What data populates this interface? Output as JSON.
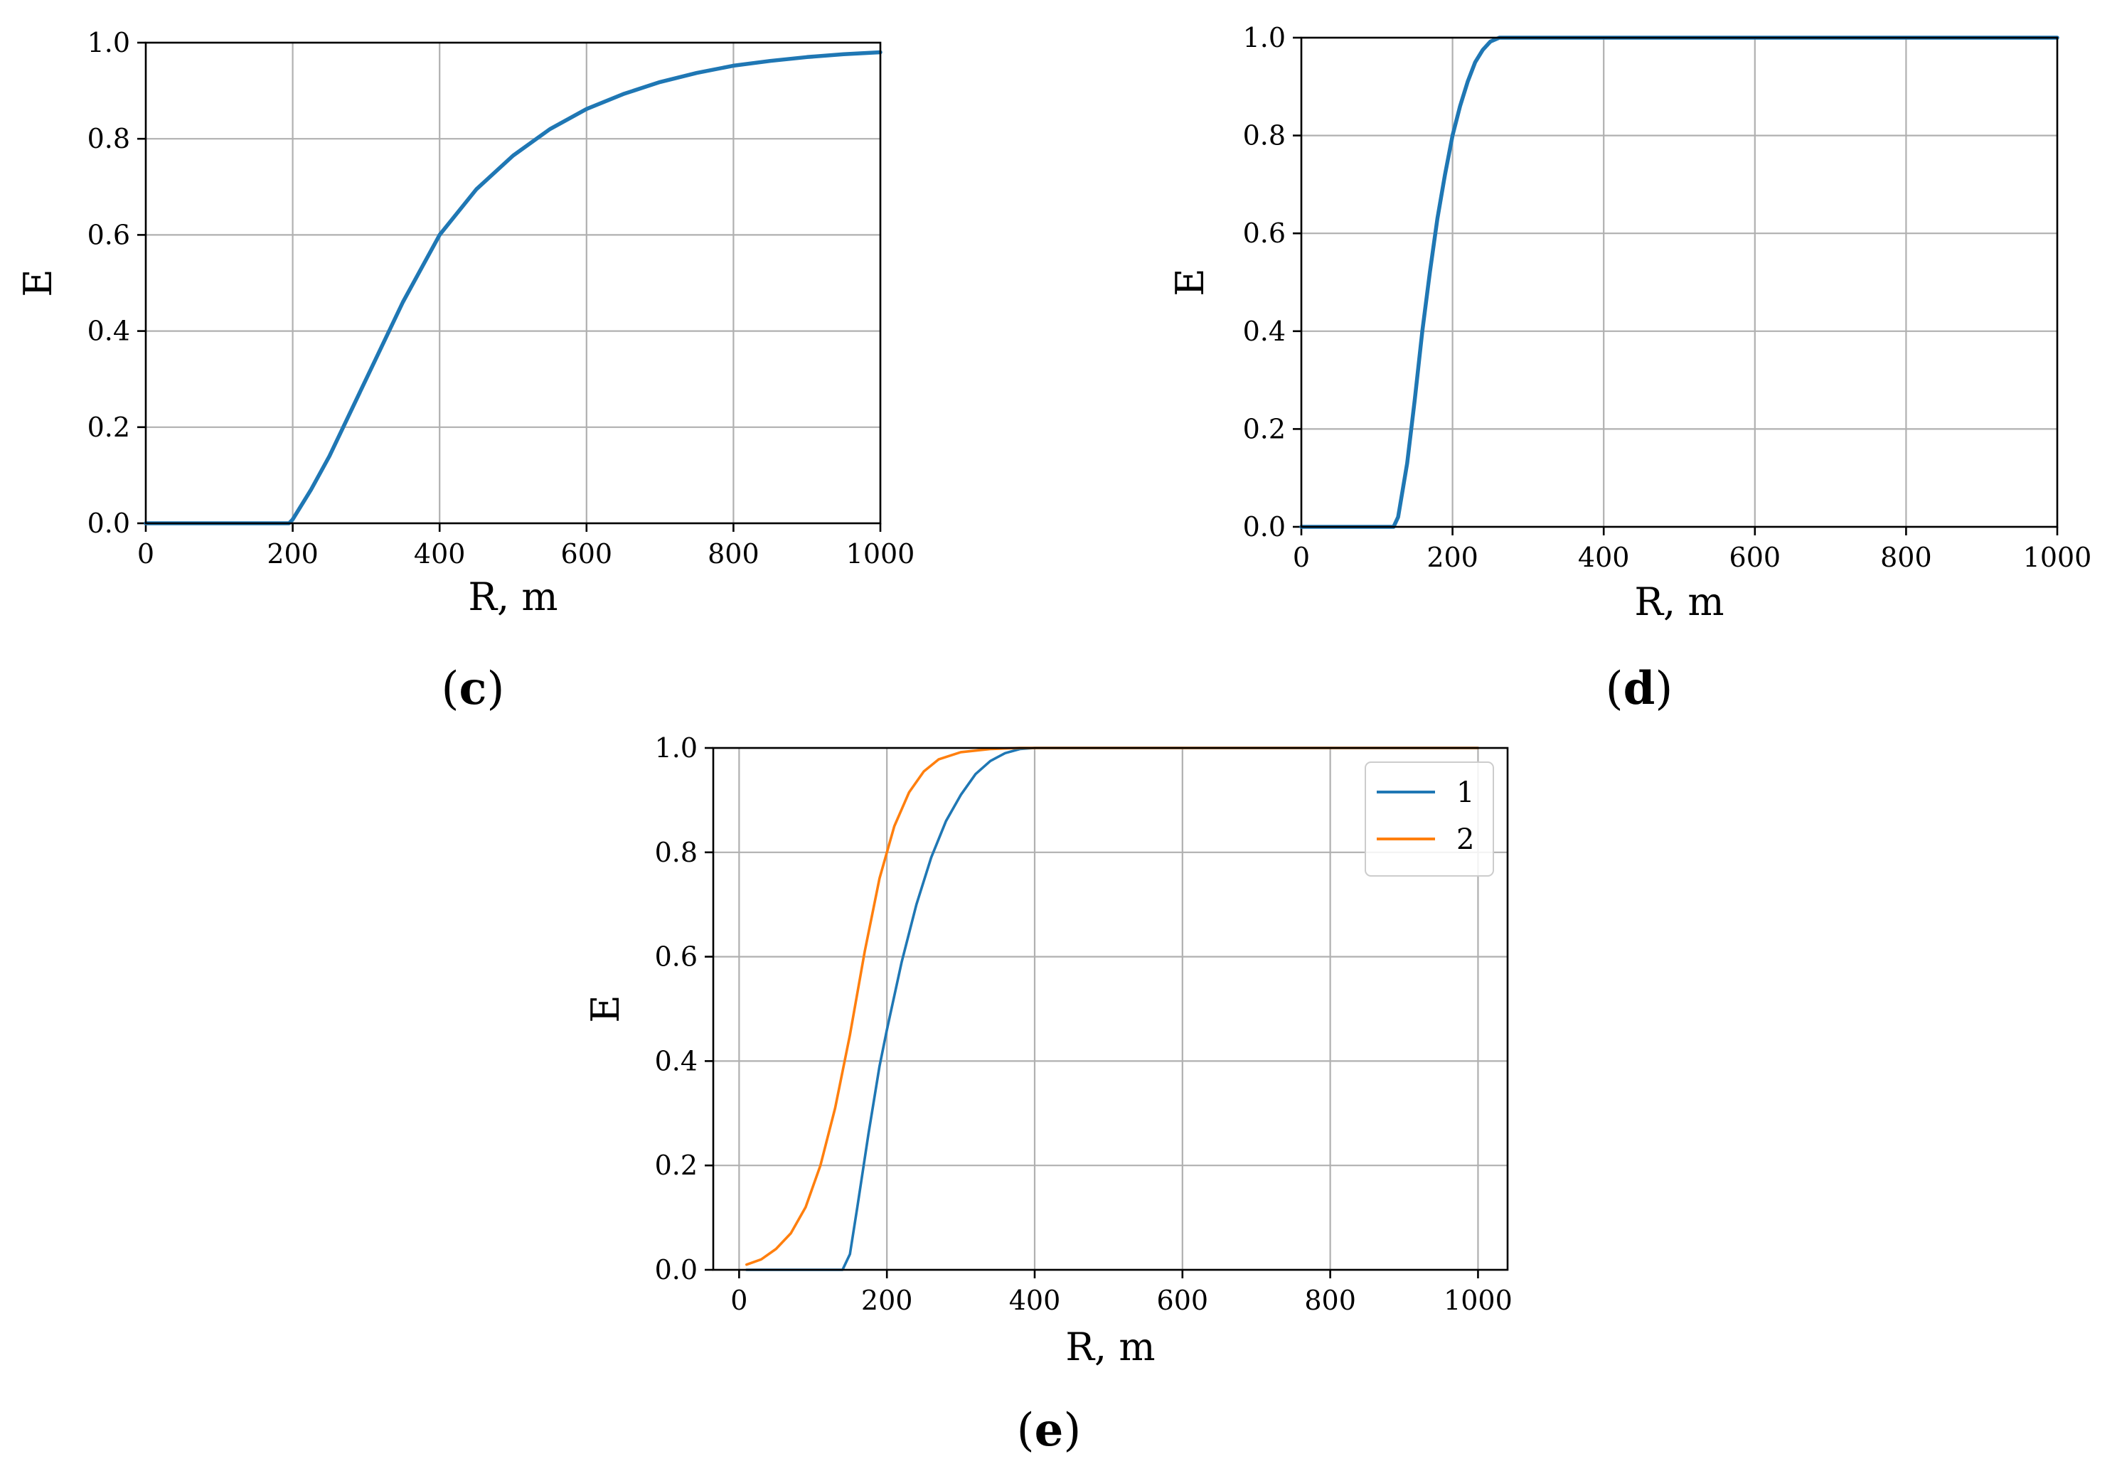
{
  "chart_data": [
    {
      "panel": "c",
      "type": "line",
      "xlabel": "R, m",
      "ylabel": "E",
      "xlim": [
        0,
        1000
      ],
      "ylim": [
        0,
        1
      ],
      "xticks": [
        "0",
        "200",
        "400",
        "600",
        "800",
        "1000"
      ],
      "yticks": [
        "0.0",
        "0.2",
        "0.4",
        "0.6",
        "0.8",
        "1.0"
      ],
      "grid": true,
      "legend": false,
      "caption": {
        "open": "(",
        "letter": "c",
        "close": ")"
      },
      "series": [
        {
          "color": "#1f77b4",
          "x": [
            0,
            100,
            195,
            200,
            225,
            250,
            300,
            350,
            400,
            450,
            500,
            550,
            600,
            650,
            700,
            750,
            800,
            850,
            900,
            950,
            1000
          ],
          "y": [
            0.0,
            0.0,
            0.0,
            0.008,
            0.07,
            0.14,
            0.3,
            0.46,
            0.6,
            0.695,
            0.765,
            0.82,
            0.862,
            0.893,
            0.918,
            0.937,
            0.952,
            0.962,
            0.97,
            0.976,
            0.98
          ]
        }
      ]
    },
    {
      "panel": "d",
      "type": "line",
      "xlabel": "R, m",
      "ylabel": "E",
      "xlim": [
        0,
        1000
      ],
      "ylim": [
        0,
        1
      ],
      "xticks": [
        "0",
        "200",
        "400",
        "600",
        "800",
        "1000"
      ],
      "yticks": [
        "0.0",
        "0.2",
        "0.4",
        "0.6",
        "0.8",
        "1.0"
      ],
      "grid": true,
      "legend": false,
      "caption": {
        "open": "(",
        "letter": "d",
        "close": ")"
      },
      "series": [
        {
          "color": "#1f77b4",
          "x": [
            0,
            60,
            122,
            128,
            140,
            150,
            160,
            170,
            180,
            190,
            200,
            210,
            220,
            230,
            240,
            250,
            262,
            300,
            400,
            600,
            800,
            1000
          ],
          "y": [
            0.0,
            0.0,
            0.0,
            0.02,
            0.13,
            0.26,
            0.4,
            0.52,
            0.63,
            0.72,
            0.8,
            0.86,
            0.91,
            0.95,
            0.975,
            0.992,
            1.0,
            1.0,
            1.0,
            1.0,
            1.0,
            1.0
          ]
        }
      ]
    },
    {
      "panel": "e",
      "type": "line",
      "xlabel": "R, m",
      "ylabel": "E",
      "xlim": [
        -35,
        1040
      ],
      "ylim": [
        0,
        1
      ],
      "xticks": [
        "0",
        "200",
        "400",
        "600",
        "800",
        "1000"
      ],
      "yticks": [
        "0.0",
        "0.2",
        "0.4",
        "0.6",
        "0.8",
        "1.0"
      ],
      "grid": true,
      "legend": "top-right",
      "caption": {
        "open": "(",
        "letter": "e",
        "close": ")"
      },
      "series": [
        {
          "name": "1",
          "color": "#1f77b4",
          "x": [
            10,
            80,
            140,
            150,
            160,
            175,
            190,
            200,
            220,
            240,
            260,
            280,
            300,
            320,
            340,
            360,
            380,
            400,
            500,
            700,
            1000
          ],
          "y": [
            0.0,
            0.0,
            0.0,
            0.03,
            0.12,
            0.26,
            0.39,
            0.46,
            0.59,
            0.7,
            0.79,
            0.86,
            0.91,
            0.95,
            0.975,
            0.99,
            0.998,
            1.0,
            1.0,
            1.0,
            1.0
          ]
        },
        {
          "name": "2",
          "color": "#ff7f0e",
          "x": [
            10,
            30,
            50,
            70,
            90,
            110,
            130,
            150,
            170,
            190,
            210,
            230,
            250,
            270,
            300,
            340,
            380,
            400,
            600,
            800,
            1000
          ],
          "y": [
            0.01,
            0.02,
            0.04,
            0.07,
            0.12,
            0.2,
            0.31,
            0.45,
            0.61,
            0.75,
            0.85,
            0.915,
            0.955,
            0.978,
            0.992,
            0.998,
            1.0,
            1.0,
            1.0,
            1.0,
            1.0
          ]
        }
      ]
    }
  ]
}
